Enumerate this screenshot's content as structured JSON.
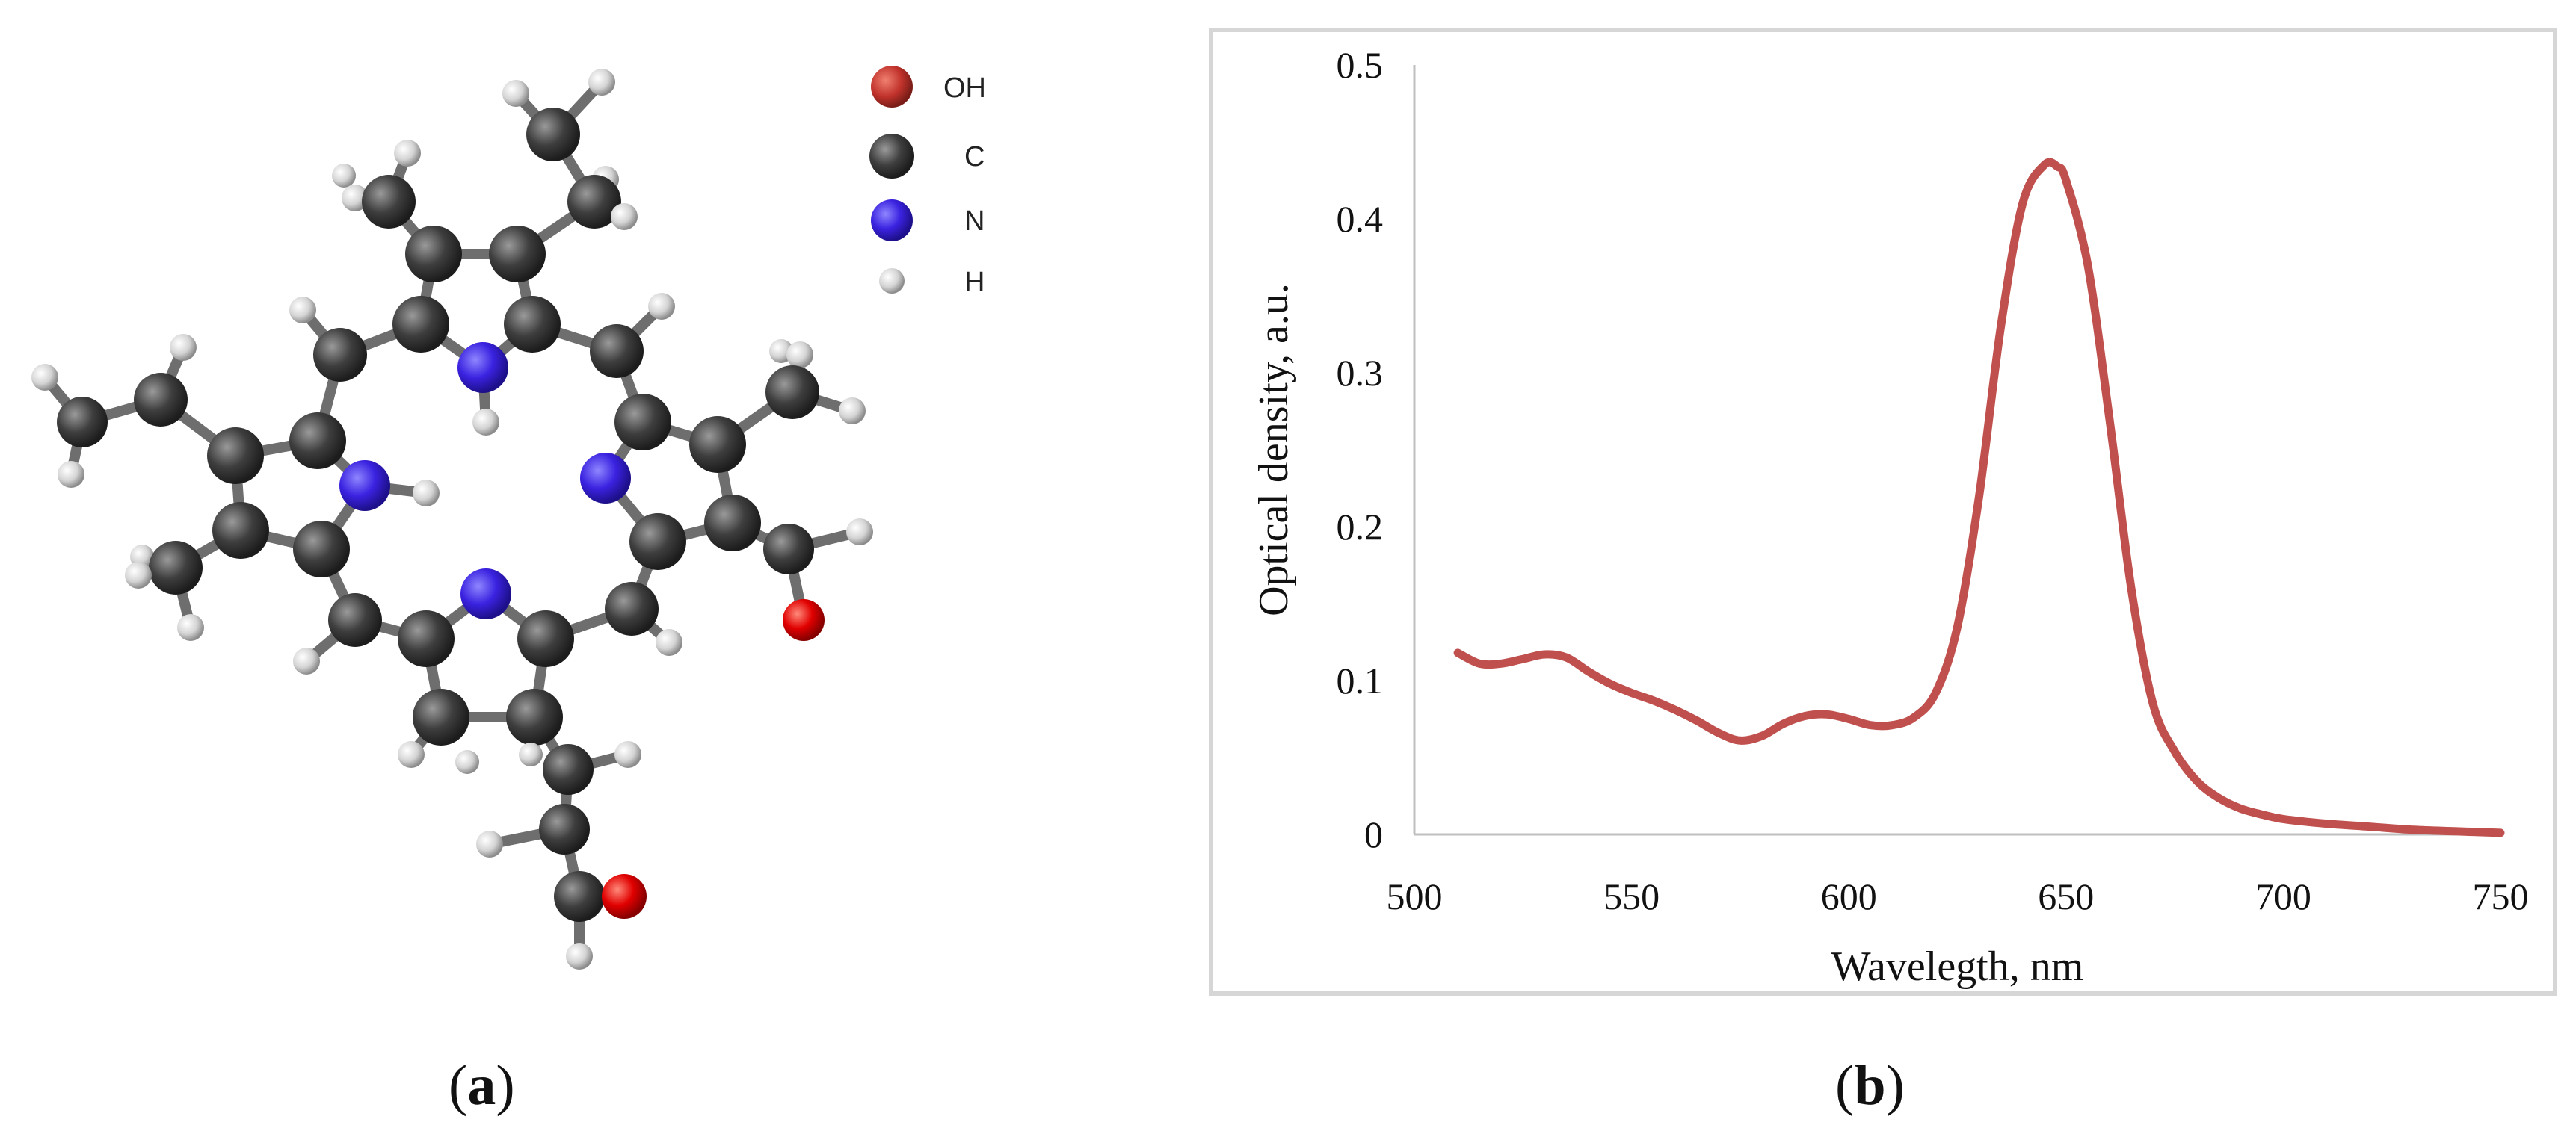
{
  "panel_a": {
    "label_open": "(",
    "label_letter": "a",
    "label_close": ")",
    "legend": [
      {
        "label": "OH",
        "color": "#c0322b"
      },
      {
        "label": "C",
        "color": "#3a3a3a"
      },
      {
        "label": "N",
        "color": "#3b2fd6"
      },
      {
        "label": "H",
        "color": "#b8b8b8"
      }
    ],
    "atom_colors": {
      "O": "#e00000",
      "C": "#3e3e3e",
      "N": "#3a22e0",
      "H": "#d4d4d4"
    }
  },
  "panel_b": {
    "label_open": "(",
    "label_letter": "b",
    "label_close": ")"
  },
  "chart_data": {
    "type": "line",
    "title": "",
    "xlabel": "Wavelegth, nm",
    "ylabel": "Optical density, a.u.",
    "xlim": [
      500,
      750
    ],
    "ylim": [
      0,
      0.5
    ],
    "xticks": [
      "500",
      "550",
      "600",
      "650",
      "700",
      "750"
    ],
    "yticks": [
      "0",
      "0.1",
      "0.2",
      "0.3",
      "0.4",
      "0.5"
    ],
    "grid": false,
    "line_color": "#c0504d",
    "series": [
      {
        "x": [
          510,
          515,
          520,
          525,
          530,
          535,
          540,
          545,
          550,
          555,
          560,
          565,
          570,
          575,
          580,
          585,
          590,
          595,
          600,
          605,
          610,
          615,
          620,
          625,
          630,
          635,
          640,
          645,
          648,
          650,
          655,
          660,
          665,
          670,
          675,
          680,
          685,
          690,
          695,
          700,
          710,
          720,
          730,
          740,
          750
        ],
        "y": [
          0.118,
          0.111,
          0.111,
          0.114,
          0.117,
          0.115,
          0.106,
          0.098,
          0.092,
          0.087,
          0.081,
          0.074,
          0.066,
          0.061,
          0.064,
          0.072,
          0.077,
          0.078,
          0.075,
          0.071,
          0.071,
          0.076,
          0.092,
          0.135,
          0.22,
          0.33,
          0.41,
          0.435,
          0.434,
          0.425,
          0.37,
          0.27,
          0.16,
          0.085,
          0.054,
          0.035,
          0.024,
          0.017,
          0.013,
          0.01,
          0.007,
          0.005,
          0.003,
          0.002,
          0.001
        ]
      }
    ]
  }
}
